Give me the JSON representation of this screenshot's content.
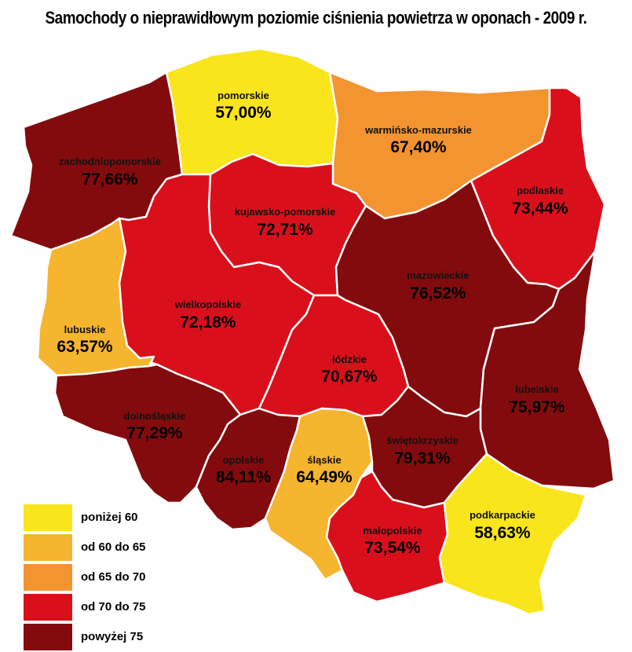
{
  "title": "Samochody o nieprawidłowym poziomie ciśnienia powietrza w oponach - 2009 r.",
  "colors": {
    "below_60": "#f9e51b",
    "60_65": "#f5b52e",
    "65_70": "#f39431",
    "70_75": "#d9101b",
    "above_75": "#830b0d"
  },
  "regions": {
    "zachodniopomorskie": {
      "name": "zachodniopomorskie",
      "value": "77,66%",
      "numeric": 77.66
    },
    "pomorskie": {
      "name": "pomorskie",
      "value": "57,00%",
      "numeric": 57.0
    },
    "warminsko_mazurskie": {
      "name": "warmińsko-mazurskie",
      "value": "67,40%",
      "numeric": 67.4
    },
    "podlaskie": {
      "name": "podlaskie",
      "value": "73,44%",
      "numeric": 73.44
    },
    "kujawsko_pomorskie": {
      "name": "kujawsko-pomorskie",
      "value": "72,71%",
      "numeric": 72.71
    },
    "mazowieckie": {
      "name": "mazowieckie",
      "value": "76,52%",
      "numeric": 76.52
    },
    "wielkopolskie": {
      "name": "wielkopolskie",
      "value": "72,18%",
      "numeric": 72.18
    },
    "lubuskie": {
      "name": "lubuskie",
      "value": "63,57%",
      "numeric": 63.57
    },
    "lodzkie": {
      "name": "łódzkie",
      "value": "70,67%",
      "numeric": 70.67
    },
    "lubelskie": {
      "name": "lubelskie",
      "value": "75,97%",
      "numeric": 75.97
    },
    "dolnoslaskie": {
      "name": "dolnośląskie",
      "value": "77,29%",
      "numeric": 77.29
    },
    "opolskie": {
      "name": "opolskie",
      "value": "84,11%",
      "numeric": 84.11
    },
    "slaskie": {
      "name": "śląskie",
      "value": "64,49%",
      "numeric": 64.49
    },
    "swietokrzyskie": {
      "name": "świętokrzyskie",
      "value": "79,31%",
      "numeric": 79.31
    },
    "malopolskie": {
      "name": "małopolskie",
      "value": "73,54%",
      "numeric": 73.54
    },
    "podkarpackie": {
      "name": "podkarpackie",
      "value": "58,63%",
      "numeric": 58.63
    }
  },
  "legend": [
    {
      "label": "poniżej 60",
      "color": "#f9e51b"
    },
    {
      "label": "od 60 do 65",
      "color": "#f5b52e"
    },
    {
      "label": "od 65 do 70",
      "color": "#f39431"
    },
    {
      "label": "od 70 do 75",
      "color": "#d9101b"
    },
    {
      "label": "powyżej 75",
      "color": "#830b0d"
    }
  ]
}
